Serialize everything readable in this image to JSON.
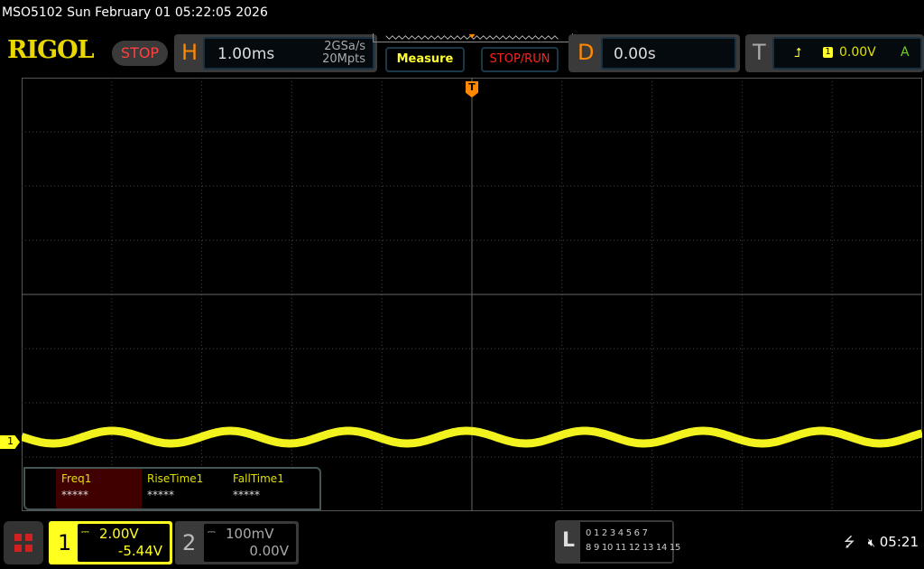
{
  "title": "MSO5102  Sun February 01 05:22:05 2026",
  "logo": "RIGOL",
  "run_state": "STOP",
  "horizontal": {
    "label": "H",
    "timebase": "1.00ms",
    "sample_rate": "2GSa/s",
    "memory_depth": "20Mpts"
  },
  "buttons": {
    "measure": "Measure",
    "stop_run": "STOP/RUN"
  },
  "delay": {
    "label": "D",
    "value": "0.00s"
  },
  "trigger": {
    "label": "T",
    "slope_icon": "rising-edge-icon",
    "source": "1",
    "level": "0.00V",
    "mode": "A",
    "marker": "T"
  },
  "channel1": {
    "number": "1",
    "scale": "2.00V",
    "offset": "-5.44V",
    "coupling_icon": "dc-coupling-icon",
    "color": "#ffff20",
    "marker": "1"
  },
  "channel2": {
    "number": "2",
    "scale": "100mV",
    "offset": "0.00V",
    "coupling_icon": "dc-coupling-icon"
  },
  "measurements": [
    {
      "name": "Freq1",
      "value": "*****"
    },
    {
      "name": "RiseTime1",
      "value": "*****"
    },
    {
      "name": "FallTime1",
      "value": "*****"
    }
  ],
  "logic": {
    "label": "L",
    "row1": "0 1 2 3  4 5 6 7",
    "row2": "8 9 10 11 12 13 14 15"
  },
  "status": {
    "usb_icon": "usb-icon",
    "sound_icon": "mute-icon",
    "time": "05:21"
  },
  "grid": {
    "h_divisions": 10,
    "v_divisions": 8
  }
}
